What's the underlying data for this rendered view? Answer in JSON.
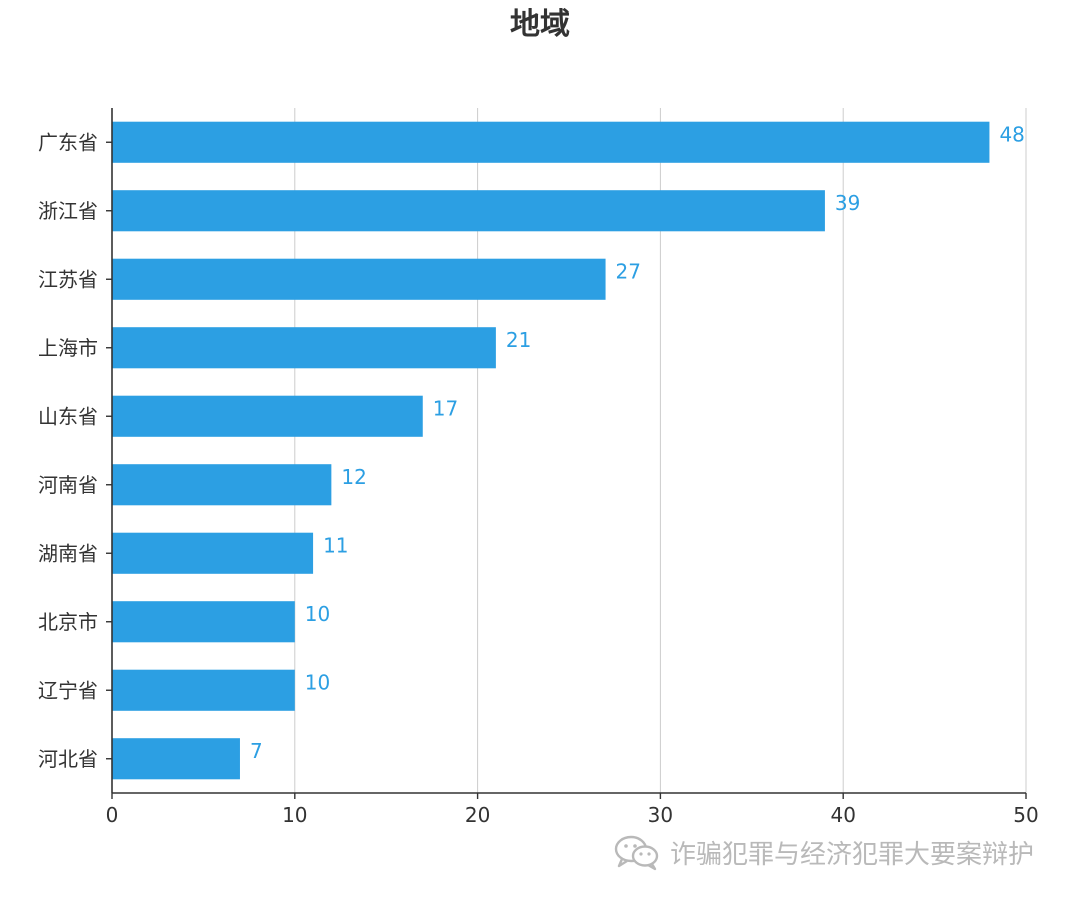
{
  "chart_data": {
    "type": "bar",
    "orientation": "horizontal",
    "title": "地域",
    "categories": [
      "广东省",
      "浙江省",
      "江苏省",
      "上海市",
      "山东省",
      "河南省",
      "湖南省",
      "北京市",
      "辽宁省",
      "河北省"
    ],
    "values": [
      48,
      39,
      27,
      21,
      17,
      12,
      11,
      10,
      10,
      7
    ],
    "xlim": [
      0,
      50
    ],
    "xticks": [
      0,
      10,
      20,
      30,
      40,
      50
    ],
    "xlabel": "",
    "ylabel": "",
    "grid": "vertical",
    "data_labels": true,
    "bar_color": "#2c9fe3",
    "label_color": "#2c9fe3"
  },
  "watermark": {
    "icon": "wechat-icon",
    "text": "诈骗犯罪与经济犯罪大要案辩护"
  }
}
